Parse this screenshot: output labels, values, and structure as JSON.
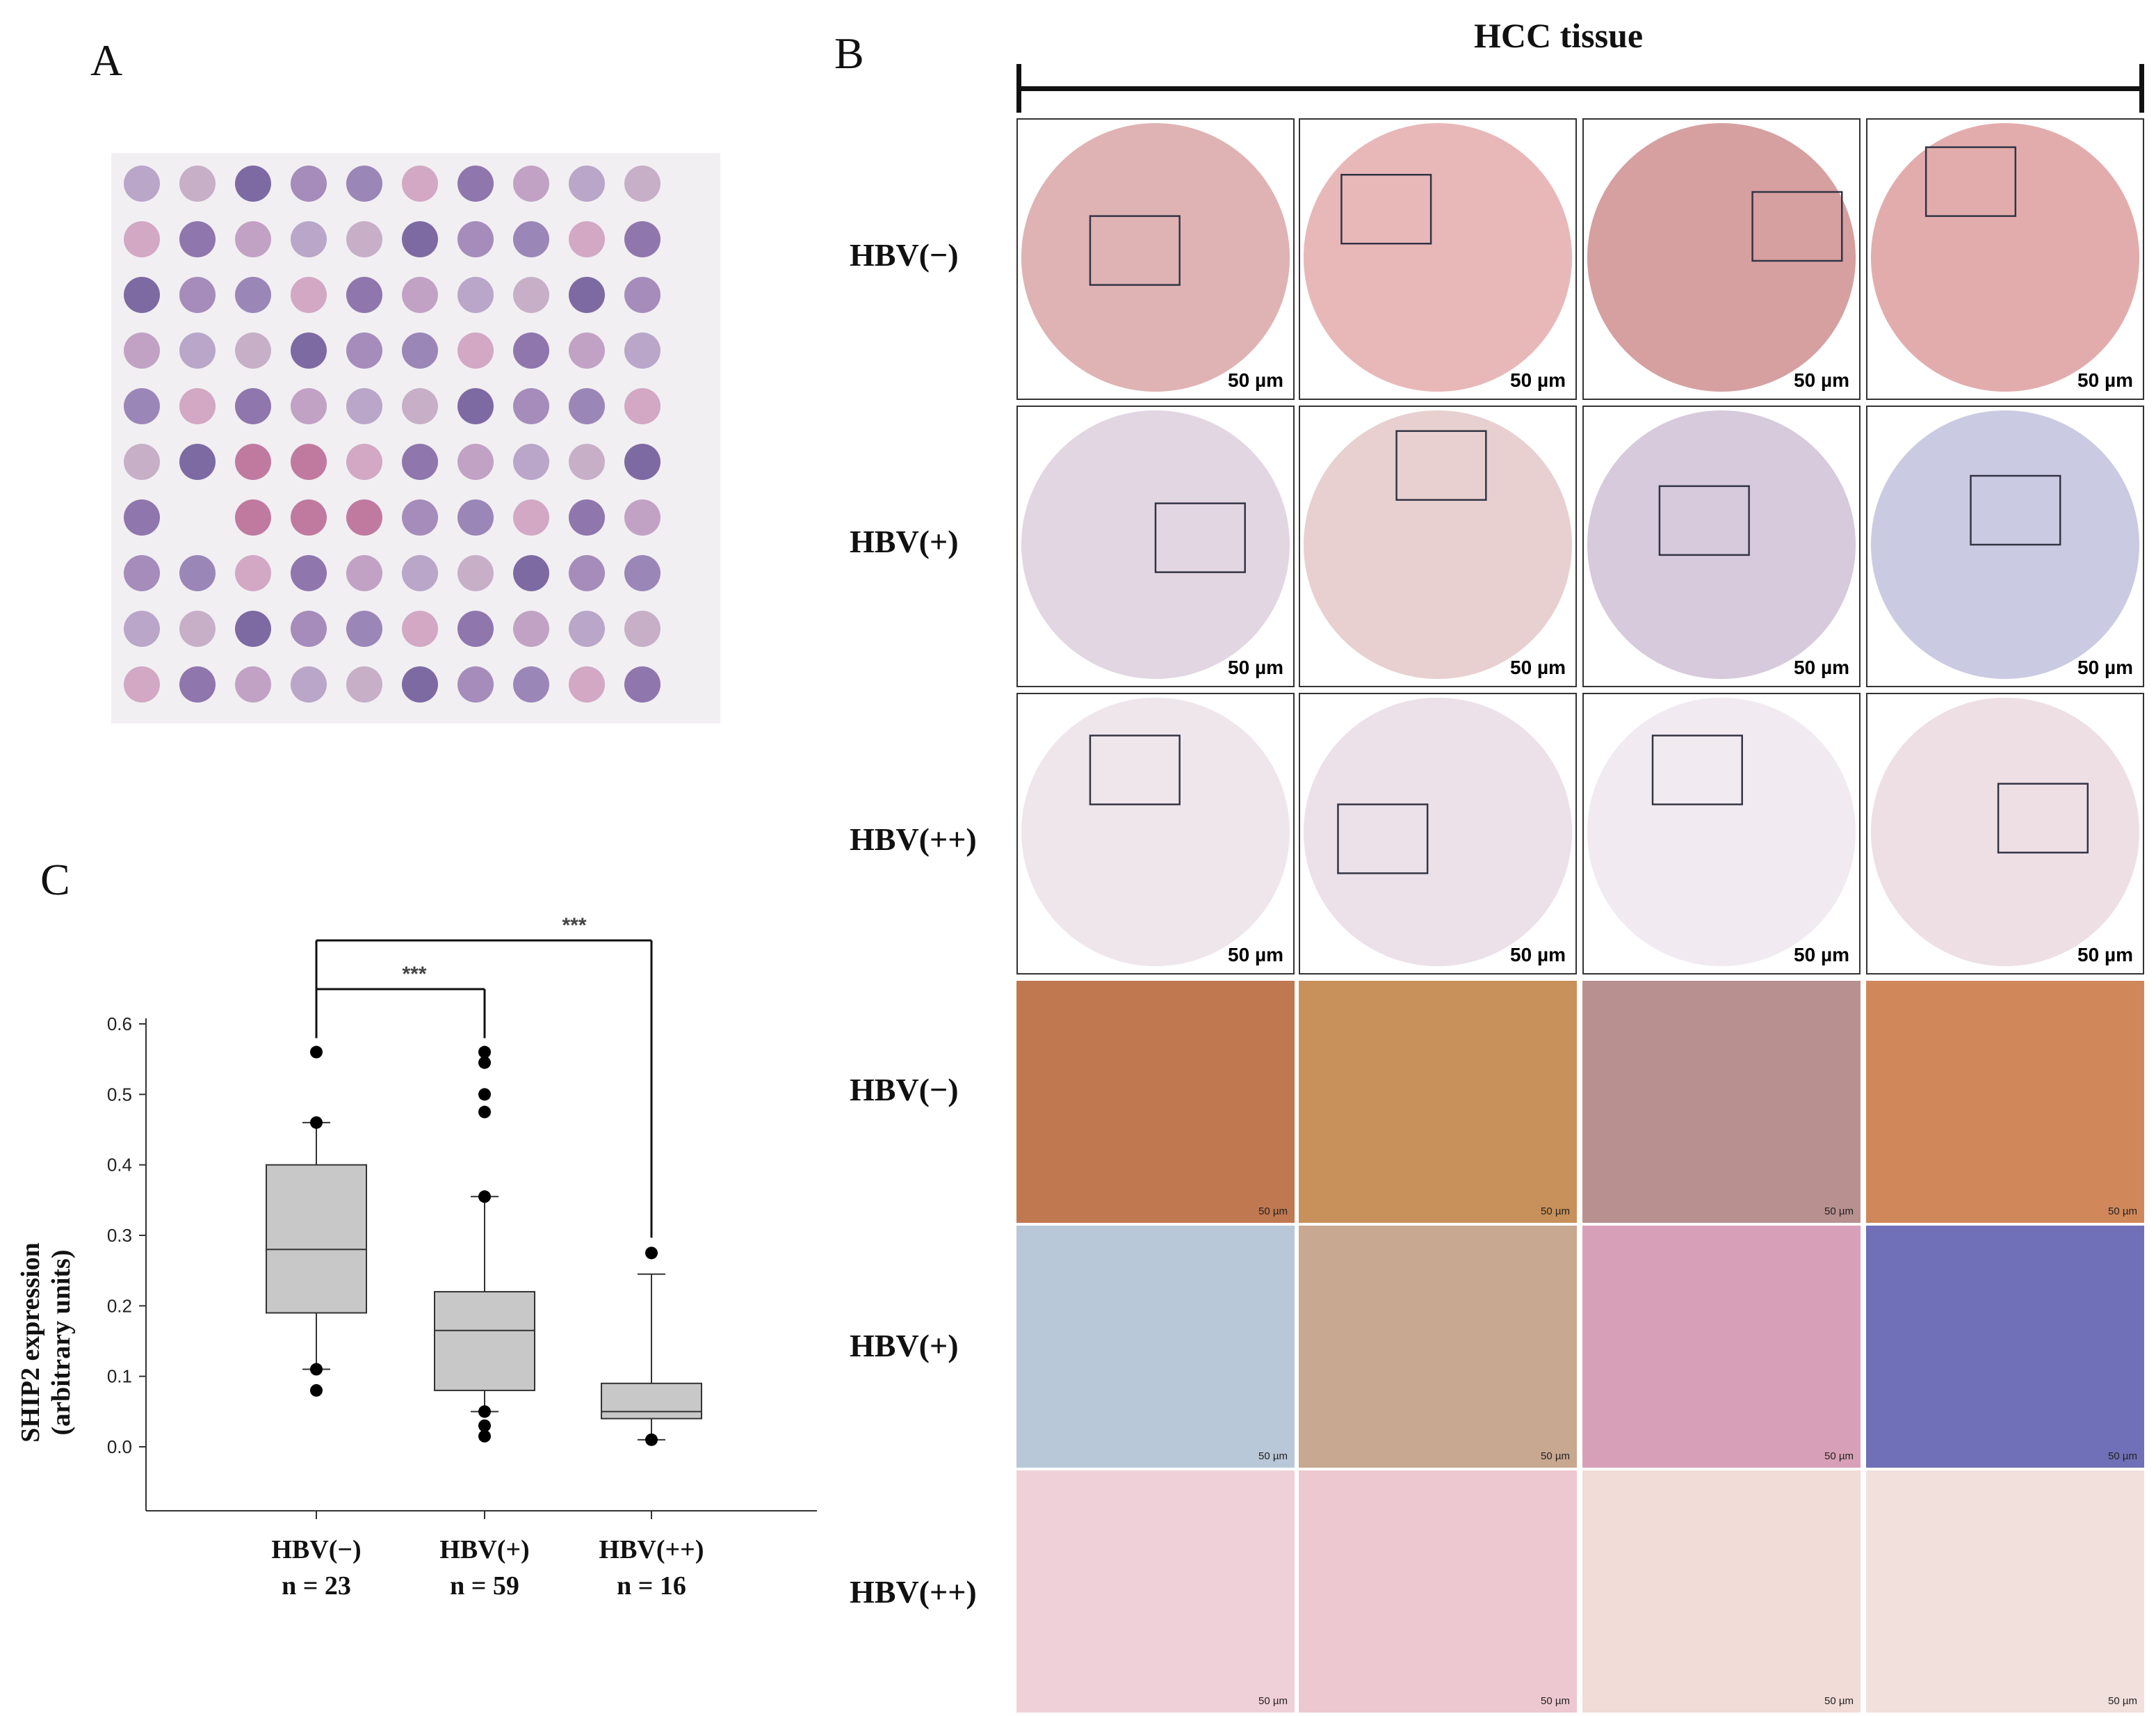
{
  "panels": {
    "a_label": "A",
    "b_label": "B",
    "c_label": "C"
  },
  "panel_b": {
    "title": "HCC tissue",
    "row_labels": [
      "HBV(−)",
      "HBV(+)",
      "HBV(++)",
      "HBV(−)",
      "HBV(+)",
      "HBV(++)"
    ],
    "scale_bar_label": "50 µm"
  },
  "colors": {
    "slide_background": "#f1eff2",
    "stain_high": "#c07040",
    "stain_mid": "#d49080",
    "stain_low": "#b0b0d0",
    "box_fill": "#c8c8c8"
  },
  "chart_data": {
    "type": "box",
    "categories": [
      "HBV(−)",
      "HBV(+)",
      "HBV(++)"
    ],
    "category_n": [
      "n = 23",
      "n = 59",
      "n = 16"
    ],
    "ylabel_line1": "SHIP2 expression",
    "ylabel_line2": "(arbitrary units)",
    "ylim": [
      0.0,
      0.6
    ],
    "yticks": [
      "0.0",
      "0.1",
      "0.2",
      "0.3",
      "0.4",
      "0.5",
      "0.6"
    ],
    "boxes": [
      {
        "whisker_low": 0.11,
        "q1": 0.19,
        "median": 0.28,
        "q3": 0.4,
        "whisker_high": 0.46,
        "outliers": [
          0.56,
          0.46,
          0.11,
          0.08
        ]
      },
      {
        "whisker_low": 0.05,
        "q1": 0.08,
        "median": 0.165,
        "q3": 0.22,
        "whisker_high": 0.355,
        "outliers": [
          0.56,
          0.545,
          0.5,
          0.475,
          0.355,
          0.05,
          0.03,
          0.015
        ]
      },
      {
        "whisker_low": 0.01,
        "q1": 0.04,
        "median": 0.05,
        "q3": 0.09,
        "whisker_high": 0.245,
        "outliers": [
          0.275,
          0.01
        ]
      }
    ],
    "significance": [
      {
        "from": 0,
        "to": 1,
        "label": "***"
      },
      {
        "from": 0,
        "to": 2,
        "label": "***"
      }
    ]
  }
}
